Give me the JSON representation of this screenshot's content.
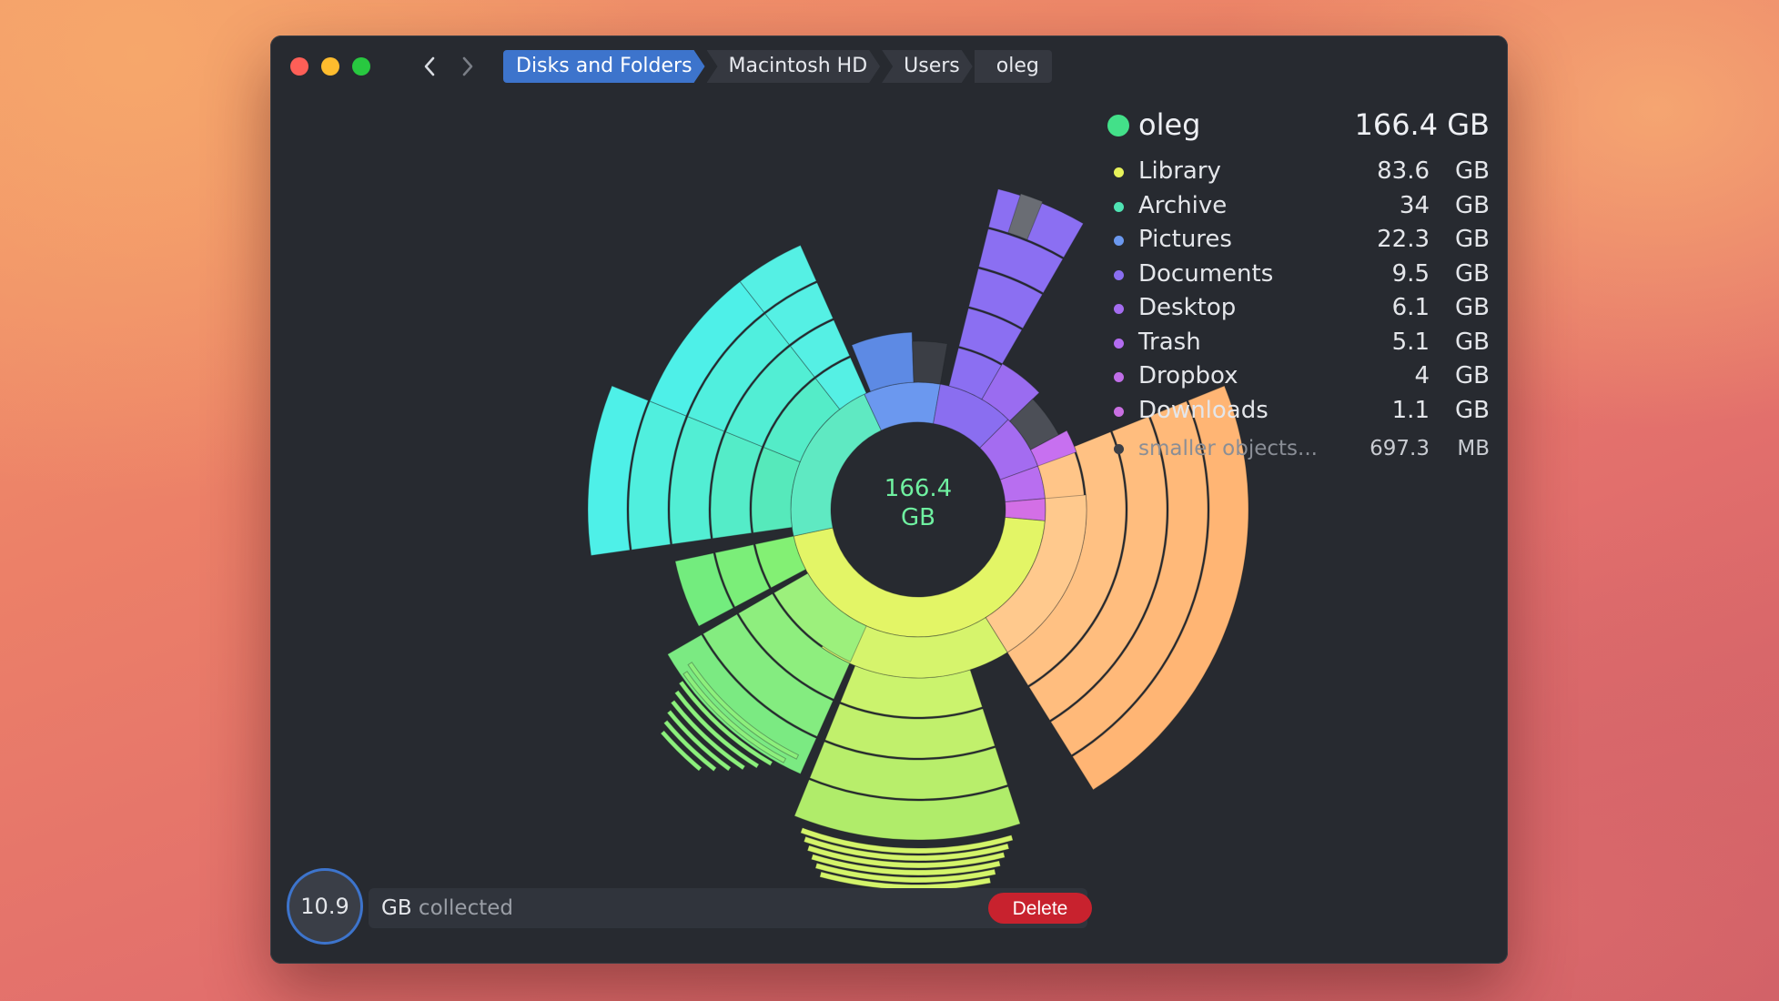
{
  "window": {
    "breadcrumb": [
      "Disks and Folders",
      "Macintosh HD",
      "Users",
      "oleg"
    ]
  },
  "center": {
    "value": "166.4",
    "unit": "GB"
  },
  "folder": {
    "name": "oleg",
    "size": "166.4 GB",
    "color": "#43e089"
  },
  "items": [
    {
      "name": "Library",
      "num": "83.6",
      "unit": "GB",
      "color": "#e7f25a"
    },
    {
      "name": "Archive",
      "num": "34",
      "unit": "GB",
      "color": "#4fe3b3"
    },
    {
      "name": "Pictures",
      "num": "22.3",
      "unit": "GB",
      "color": "#6b98ef"
    },
    {
      "name": "Documents",
      "num": "9.5",
      "unit": "GB",
      "color": "#8a6ef0"
    },
    {
      "name": "Desktop",
      "num": "6.1",
      "unit": "GB",
      "color": "#a46cf0"
    },
    {
      "name": "Trash",
      "num": "5.1",
      "unit": "GB",
      "color": "#b36cf0"
    },
    {
      "name": "Dropbox",
      "num": "4",
      "unit": "GB",
      "color": "#c06ee8"
    },
    {
      "name": "Downloads",
      "num": "1.1",
      "unit": "GB",
      "color": "#c96fe2"
    }
  ],
  "smaller": {
    "name": "smaller objects...",
    "num": "697.3",
    "unit": "MB"
  },
  "collector": {
    "value": "10.9",
    "unit": "GB",
    "label": "collected",
    "delete_label": "Delete"
  },
  "colors": {
    "accent": "#3d74cc",
    "delete": "#c8222e",
    "window_bg": "#272a30"
  }
}
